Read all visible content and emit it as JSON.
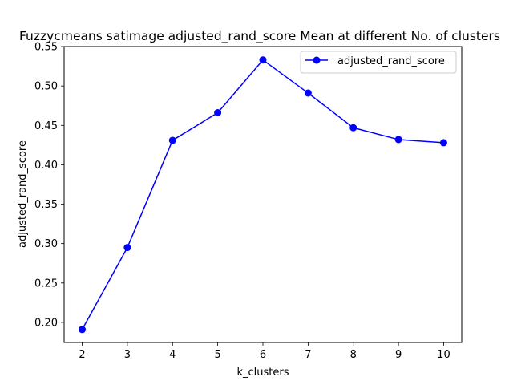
{
  "chart_data": {
    "type": "line",
    "title": "Fuzzycmeans satimage adjusted_rand_score Mean at different No. of clusters",
    "xlabel": "k_clusters",
    "ylabel": "adjusted_rand_score",
    "x": [
      2,
      3,
      4,
      5,
      6,
      7,
      8,
      9,
      10
    ],
    "series": [
      {
        "name": "adjusted_rand_score",
        "color": "#0000ff",
        "marker": "circle",
        "values": [
          0.191,
          0.295,
          0.431,
          0.466,
          0.533,
          0.491,
          0.447,
          0.432,
          0.428
        ]
      }
    ],
    "xlim": [
      1.6,
      10.4
    ],
    "ylim": [
      0.1745,
      0.55
    ],
    "xticks": [
      "2",
      "3",
      "4",
      "5",
      "6",
      "7",
      "8",
      "9",
      "10"
    ],
    "yticks": [
      "0.20",
      "0.25",
      "0.30",
      "0.35",
      "0.40",
      "0.45",
      "0.50",
      "0.55"
    ],
    "ytick_values": [
      0.2,
      0.25,
      0.3,
      0.35,
      0.4,
      0.45,
      0.5,
      0.55
    ],
    "grid": false,
    "legend_position": "top-right"
  }
}
